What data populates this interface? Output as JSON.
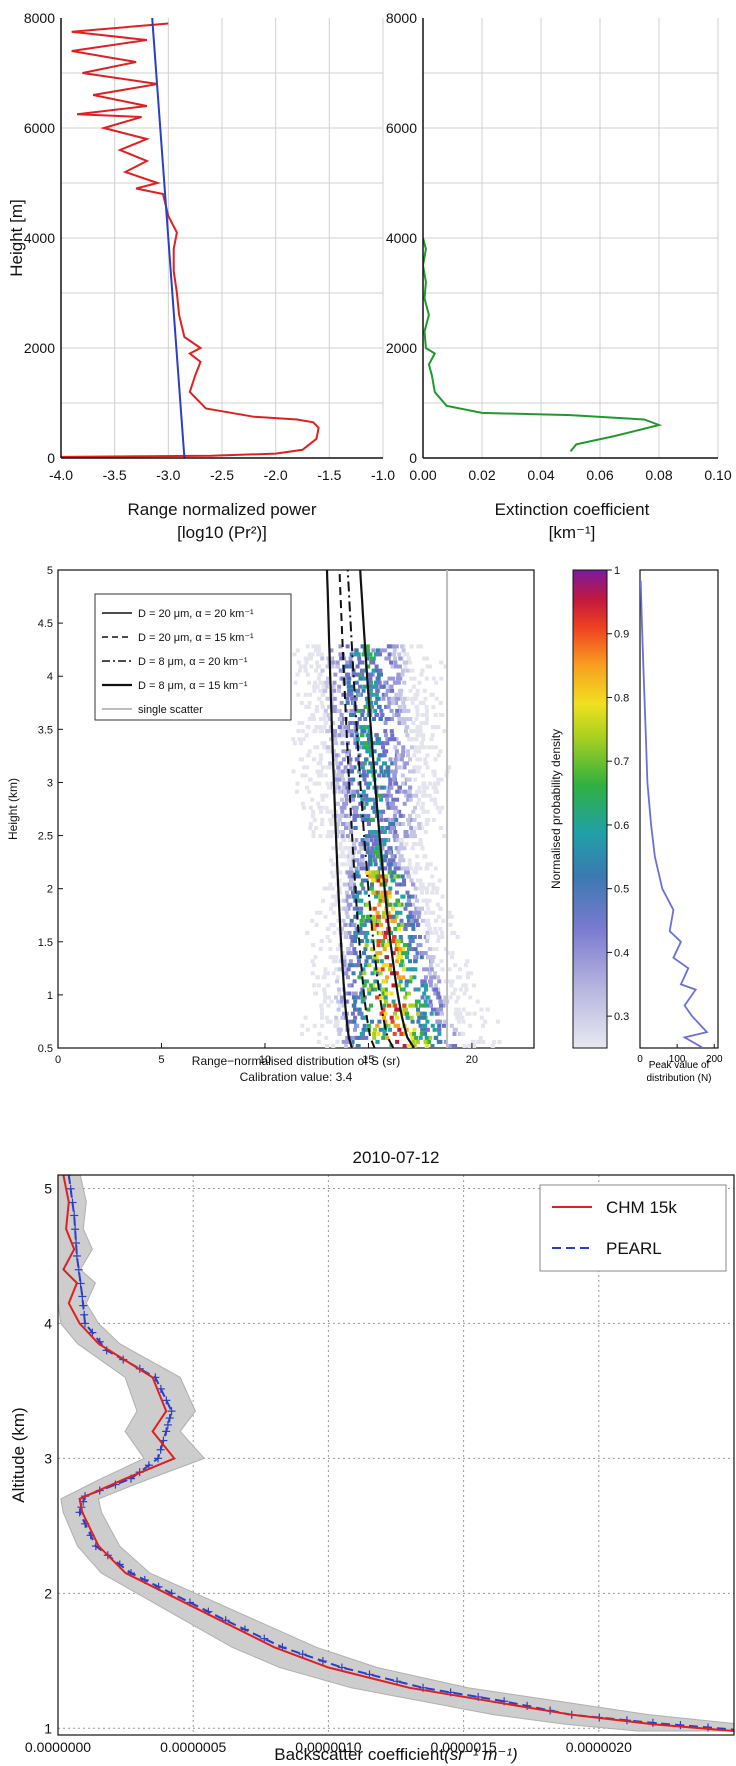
{
  "chart_data": [
    {
      "type": "line",
      "xlabel_line1": "Range normalized power",
      "xlabel_line2": "[log10 (Pr²)]",
      "ylabel": "Height [m]",
      "xlim": [
        -4.0,
        -1.0
      ],
      "ylim": [
        0,
        8000
      ],
      "xticks": [
        "-4.0",
        "-3.5",
        "-3.0",
        "-2.5",
        "-2.0",
        "-1.5",
        "-1.0"
      ],
      "yticks": [
        "0",
        "2000",
        "4000",
        "6000",
        "8000"
      ],
      "grid": true,
      "series": [
        {
          "color": "#e02020",
          "points": [
            [
              -4.0,
              20
            ],
            [
              -2.6,
              40
            ],
            [
              -2.0,
              80
            ],
            [
              -1.75,
              150
            ],
            [
              -1.62,
              350
            ],
            [
              -1.6,
              550
            ],
            [
              -1.65,
              650
            ],
            [
              -1.8,
              700
            ],
            [
              -2.2,
              750
            ],
            [
              -2.65,
              900
            ],
            [
              -2.8,
              1200
            ],
            [
              -2.75,
              1500
            ],
            [
              -2.7,
              1750
            ],
            [
              -2.8,
              1900
            ],
            [
              -2.7,
              2000
            ],
            [
              -2.85,
              2200
            ],
            [
              -2.9,
              2600
            ],
            [
              -2.92,
              3000
            ],
            [
              -2.95,
              3400
            ],
            [
              -2.95,
              3800
            ],
            [
              -2.92,
              4100
            ],
            [
              -3.0,
              4400
            ],
            [
              -3.05,
              4800
            ],
            [
              -3.3,
              4900
            ],
            [
              -3.1,
              5000
            ],
            [
              -3.4,
              5200
            ],
            [
              -3.2,
              5400
            ],
            [
              -3.45,
              5600
            ],
            [
              -3.2,
              5800
            ],
            [
              -3.6,
              6000
            ],
            [
              -3.25,
              6200
            ],
            [
              -3.85,
              6250
            ],
            [
              -3.2,
              6400
            ],
            [
              -3.7,
              6600
            ],
            [
              -3.1,
              6800
            ],
            [
              -3.8,
              7000
            ],
            [
              -3.3,
              7200
            ],
            [
              -3.9,
              7400
            ],
            [
              -3.2,
              7600
            ],
            [
              -3.9,
              7750
            ],
            [
              -3.0,
              7900
            ]
          ]
        },
        {
          "color": "#2a3fc8",
          "points": [
            [
              -2.85,
              0
            ],
            [
              -3.15,
              8000
            ]
          ]
        }
      ]
    },
    {
      "type": "line",
      "xlabel_line1": "Extinction coefficient",
      "xlabel_line2": "[km⁻¹]",
      "ylabel": "",
      "xlim": [
        0.0,
        0.1
      ],
      "ylim": [
        0,
        8000
      ],
      "xticks": [
        "0.00",
        "0.02",
        "0.04",
        "0.06",
        "0.08",
        "0.10"
      ],
      "yticks": [
        "0",
        "2000",
        "4000",
        "6000",
        "8000"
      ],
      "grid": true,
      "series": [
        {
          "color": "#1f9a2e",
          "points": [
            [
              0.05,
              120
            ],
            [
              0.052,
              250
            ],
            [
              0.065,
              400
            ],
            [
              0.08,
              600
            ],
            [
              0.075,
              700
            ],
            [
              0.05,
              780
            ],
            [
              0.02,
              820
            ],
            [
              0.008,
              950
            ],
            [
              0.004,
              1200
            ],
            [
              0.003,
              1500
            ],
            [
              0.002,
              1700
            ],
            [
              0.004,
              1900
            ],
            [
              0.001,
              2000
            ],
            [
              0.0005,
              2300
            ],
            [
              0.002,
              2600
            ],
            [
              0.0005,
              2900
            ],
            [
              0.001,
              3200
            ],
            [
              0.0,
              3500
            ],
            [
              0.001,
              3800
            ],
            [
              0.0,
              4000
            ]
          ]
        }
      ]
    },
    {
      "type": "heatmap",
      "xlabel_line1": "Range−normalised distribution of S (sr)",
      "xlabel_line2": "Calibration value: 3.4",
      "ylabel": "Height (km)",
      "xlim": [
        0,
        23
      ],
      "ylim": [
        0.5,
        5
      ],
      "xticks": [
        "0",
        "5",
        "10",
        "15",
        "20"
      ],
      "yticks": [
        "0.5",
        "1",
        "1.5",
        "2",
        "2.5",
        "3",
        "3.5",
        "4",
        "4.5",
        "5"
      ],
      "legend": [
        "D = 20 μm, α = 20 km⁻¹",
        "D = 20 μm, α = 15 km⁻¹",
        "D =  8 μm, α = 20 km⁻¹",
        "D =  8 μm, α = 15 km⁻¹",
        "single scatter"
      ],
      "legend_position": "top-left",
      "colorbar_label": "Normalised probability density",
      "colorbar_ticks": [
        "0.3",
        "0.4",
        "0.5",
        "0.6",
        "0.7",
        "0.8",
        "0.9",
        "1"
      ],
      "peak_panel": {
        "xlabel_line1": "Peak value of",
        "xlabel_line2": "distribution (N)",
        "xticks": [
          "0",
          "100",
          "200"
        ],
        "xlim": [
          0,
          210
        ],
        "color": "#6a70d8",
        "points": [
          [
            170,
            0.5
          ],
          [
            120,
            0.6
          ],
          [
            180,
            0.65
          ],
          [
            140,
            0.8
          ],
          [
            120,
            0.9
          ],
          [
            150,
            1.05
          ],
          [
            110,
            1.1
          ],
          [
            130,
            1.25
          ],
          [
            90,
            1.35
          ],
          [
            110,
            1.5
          ],
          [
            80,
            1.6
          ],
          [
            90,
            1.8
          ],
          [
            60,
            2.0
          ],
          [
            40,
            2.3
          ],
          [
            30,
            2.6
          ],
          [
            20,
            3.0
          ],
          [
            15,
            3.5
          ],
          [
            10,
            4.0
          ],
          [
            5,
            4.5
          ],
          [
            2,
            4.9
          ]
        ]
      },
      "single_scatter_x": 18.8,
      "curves_x_at_bottom": [
        14.2,
        15.3,
        16.2,
        17.2
      ],
      "curves_x_at_top": [
        13.0,
        13.6,
        14.0,
        14.6
      ]
    },
    {
      "type": "line",
      "title": "2010-07-12",
      "xlabel": "Backscatter coefficient",
      "xlabel_units": "(sr⁻¹ m⁻¹)",
      "ylabel": "Altitude (km)",
      "xlim": [
        0.0,
        2.5e-06
      ],
      "ylim": [
        0.95,
        5.1
      ],
      "xticks": [
        "0.0000000",
        "0.0000005",
        "0.0000010",
        "0.0000015",
        "0.0000020"
      ],
      "yticks": [
        "1",
        "2",
        "3",
        "4",
        "5"
      ],
      "grid": true,
      "legend_position": "top-right",
      "series": [
        {
          "name": "CHM 15k",
          "color": "#e02020",
          "points": [
            [
              2e-08,
              5.1
            ],
            [
              4e-08,
              4.9
            ],
            [
              3e-08,
              4.7
            ],
            [
              6e-08,
              4.55
            ],
            [
              2e-08,
              4.4
            ],
            [
              7e-08,
              4.3
            ],
            [
              4e-08,
              4.15
            ],
            [
              8e-08,
              4.0
            ],
            [
              1.5e-07,
              3.85
            ],
            [
              3.5e-07,
              3.6
            ],
            [
              4e-07,
              3.35
            ],
            [
              3.5e-07,
              3.2
            ],
            [
              4.3e-07,
              3.0
            ],
            [
              2.5e-07,
              2.85
            ],
            [
              8e-08,
              2.7
            ],
            [
              9e-08,
              2.6
            ],
            [
              1.5e-07,
              2.35
            ],
            [
              2.5e-07,
              2.15
            ],
            [
              4e-07,
              2.0
            ],
            [
              6e-07,
              1.8
            ],
            [
              8e-07,
              1.6
            ],
            [
              1e-06,
              1.45
            ],
            [
              1.3e-06,
              1.3
            ],
            [
              1.6e-06,
              1.2
            ],
            [
              1.9e-06,
              1.1
            ],
            [
              2.2e-06,
              1.03
            ],
            [
              2.5e-06,
              0.98
            ]
          ]
        },
        {
          "name": "PEARL",
          "color": "#2a3fc8",
          "points": [
            [
              4e-08,
              5.1
            ],
            [
              6e-08,
              4.8
            ],
            [
              7e-08,
              4.5
            ],
            [
              9e-08,
              4.2
            ],
            [
              1e-07,
              4.0
            ],
            [
              1.8e-07,
              3.8
            ],
            [
              3.6e-07,
              3.6
            ],
            [
              4.2e-07,
              3.35
            ],
            [
              4e-07,
              3.2
            ],
            [
              3.7e-07,
              3.0
            ],
            [
              2.7e-07,
              2.85
            ],
            [
              1e-07,
              2.72
            ],
            [
              8e-08,
              2.6
            ],
            [
              1.4e-07,
              2.35
            ],
            [
              2.7e-07,
              2.15
            ],
            [
              4.2e-07,
              2.0
            ],
            [
              6.2e-07,
              1.8
            ],
            [
              8.3e-07,
              1.6
            ],
            [
              1.05e-06,
              1.45
            ],
            [
              1.35e-06,
              1.3
            ],
            [
              1.65e-06,
              1.2
            ],
            [
              1.9e-06,
              1.1
            ],
            [
              2.2e-06,
              1.04
            ],
            [
              2.5e-06,
              0.99
            ]
          ]
        }
      ]
    }
  ]
}
